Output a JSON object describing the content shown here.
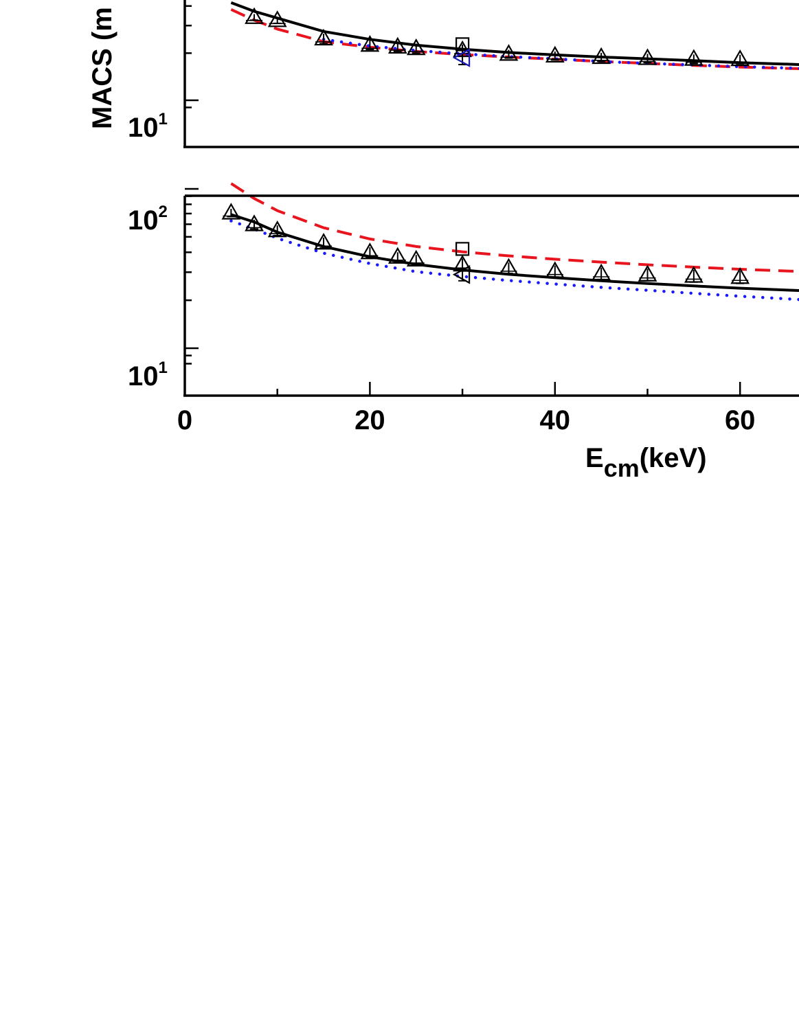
{
  "chart_data": [
    {
      "type": "line",
      "panel": "upper",
      "ylabel": "MACS (m",
      "yscale": "log",
      "ylim": [
        8.2,
        60
      ],
      "xlim": [
        0,
        66.5
      ],
      "y_tick_labels": [
        {
          "base": "10",
          "exp": "1"
        }
      ],
      "colors": {
        "solid": "#000000",
        "dashed": "#e8141e",
        "dotted": "#1a1aff",
        "blue_marker": "#1a1ab4"
      },
      "series": [
        {
          "style": "solid",
          "x": [
            5,
            7.5,
            10,
            15,
            20,
            25,
            30,
            35,
            40,
            45,
            50,
            55,
            60,
            66.5
          ],
          "y": [
            42,
            37,
            33.5,
            27.5,
            24.5,
            22.5,
            21.2,
            20.2,
            19.5,
            18.9,
            18.4,
            17.9,
            17.4,
            16.9
          ]
        },
        {
          "style": "dashed",
          "x": [
            5,
            7.5,
            10,
            15,
            20,
            25,
            30,
            35,
            40,
            45,
            50,
            55,
            60,
            66.5
          ],
          "y": [
            38,
            32.5,
            28.5,
            23.7,
            21.8,
            20.5,
            19.6,
            18.9,
            18.3,
            17.7,
            17.2,
            16.7,
            16.3,
            15.9
          ]
        },
        {
          "style": "dotted",
          "x": [
            15,
            20,
            25,
            30,
            35,
            40,
            45,
            50,
            55,
            60,
            66.5
          ],
          "y": [
            24.5,
            22.2,
            20.8,
            19.8,
            19.0,
            18.4,
            17.7,
            17.2,
            16.8,
            16.4,
            16.0
          ]
        },
        {
          "style": "triangle",
          "x": [
            7.5,
            10,
            15,
            20,
            23,
            25,
            30,
            35,
            40,
            45,
            50,
            55,
            60
          ],
          "y": [
            34,
            32.5,
            24.8,
            22.6,
            22.0,
            21.5,
            20.9,
            19.8,
            19.3,
            18.9,
            18.6,
            18.4,
            18.3
          ],
          "err": [
            1.5,
            1.5,
            1.8,
            1.5,
            1.5,
            1.5,
            1.8,
            1.2,
            1.2,
            1.2,
            1.2,
            1.2,
            1.2
          ]
        },
        {
          "style": "square",
          "x": [
            30
          ],
          "y": [
            22.8
          ]
        },
        {
          "style": "left-triangle",
          "x": [
            30
          ],
          "y": [
            18.7
          ],
          "err": [
            1.8
          ]
        }
      ]
    },
    {
      "type": "line",
      "panel": "lower",
      "xlabel": {
        "base": "E",
        "sub": "cm",
        "rest": "(keV)"
      },
      "yscale": "log",
      "ylim": [
        7.4,
        113
      ],
      "xlim": [
        0,
        66.5
      ],
      "x_ticks": [
        0,
        20,
        40,
        60
      ],
      "x_minor_ticks": [
        10,
        30,
        50
      ],
      "y_tick_labels": [
        {
          "base": "10",
          "exp": "2"
        },
        {
          "base": "10",
          "exp": "1"
        }
      ],
      "colors": {
        "solid": "#000000",
        "dashed": "#e8141e",
        "dotted": "#1a1aff"
      },
      "series": [
        {
          "style": "dashed",
          "x": [
            5,
            7.5,
            10,
            15,
            20,
            25,
            30,
            35,
            40,
            45,
            50,
            55,
            60,
            66.5
          ],
          "y": [
            108,
            87,
            73,
            57,
            48.5,
            43.5,
            40.3,
            38.0,
            36.2,
            34.7,
            33.4,
            32.3,
            31.3,
            30.3
          ]
        },
        {
          "style": "solid",
          "x": [
            5,
            7.5,
            10,
            15,
            20,
            25,
            30,
            35,
            40,
            45,
            50,
            55,
            60,
            66.5
          ],
          "y": [
            69,
            62,
            53.5,
            43.5,
            37.5,
            33.6,
            31.0,
            29.1,
            27.7,
            26.5,
            25.5,
            24.6,
            23.8,
            23.0
          ]
        },
        {
          "style": "dotted",
          "x": [
            5,
            7.5,
            10,
            15,
            20,
            25,
            30,
            35,
            40,
            45,
            50,
            55,
            60,
            66.5
          ],
          "y": [
            63,
            56,
            49,
            39.5,
            34,
            30.2,
            28.2,
            26.6,
            25.3,
            24.1,
            23.1,
            22.1,
            21.2,
            20.2
          ]
        },
        {
          "style": "triangle",
          "x": [
            5,
            7.5,
            10,
            15,
            20,
            23,
            25,
            30,
            35,
            40,
            45,
            50,
            55,
            60
          ],
          "y": [
            71,
            60,
            55,
            46,
            40,
            37.5,
            36,
            33.5,
            32.0,
            30.5,
            29.5,
            29.0,
            28.5,
            28.0
          ],
          "err": [
            4,
            4,
            4,
            3.5,
            3,
            2.5,
            2.5,
            3,
            2.5,
            2.5,
            2.5,
            2.5,
            2.5,
            2.5
          ]
        },
        {
          "style": "square",
          "x": [
            30
          ],
          "y": [
            42
          ]
        },
        {
          "style": "left-triangle",
          "x": [
            30
          ],
          "y": [
            29
          ],
          "err": [
            2.5
          ]
        }
      ]
    }
  ]
}
